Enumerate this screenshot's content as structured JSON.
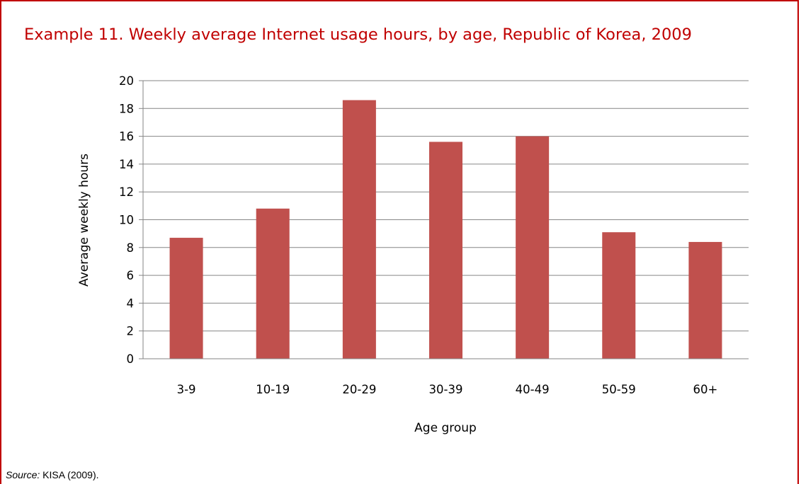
{
  "title": "Example 11. Weekly average Internet usage hours, by age, Republic of Korea, 2009",
  "source": {
    "label": "Source:",
    "text": " KISA (2009)."
  },
  "colors": {
    "frame": "#c00000",
    "title": "#c00000",
    "bar": "#c0504d",
    "grid": "#868686"
  },
  "chart_data": {
    "type": "bar",
    "title": "Example 11. Weekly average Internet usage hours, by age, Republic of Korea, 2009",
    "xlabel": "Age group",
    "ylabel": "Average weekly hours",
    "categories": [
      "3-9",
      "10-19",
      "20-29",
      "30-39",
      "40-49",
      "50-59",
      "60+"
    ],
    "values": [
      8.7,
      10.8,
      18.6,
      15.6,
      16.0,
      9.1,
      8.4
    ],
    "ylim": [
      0,
      20
    ],
    "yticks": [
      "0",
      "2",
      "4",
      "6",
      "8",
      "10",
      "12",
      "14",
      "16",
      "18",
      "20"
    ],
    "grid": true,
    "legend": "none"
  }
}
